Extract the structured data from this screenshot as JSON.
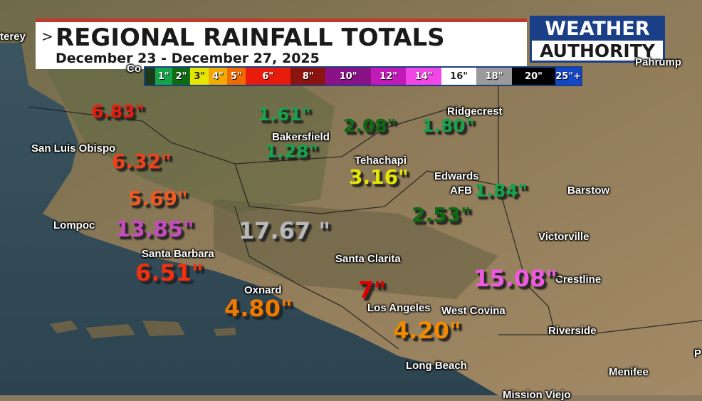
{
  "banner": {
    "title": "REGIONAL RAINFALL TOTALS",
    "subtitle": "December 23 - December 27, 2025"
  },
  "logo": {
    "line1": "WEATHER",
    "line2": "AUTHORITY"
  },
  "legend": [
    {
      "label": "",
      "color": "#1a3a1a"
    },
    {
      "label": "1\"",
      "color": "#16a34a"
    },
    {
      "label": "2\"",
      "color": "#0f6b12"
    },
    {
      "label": "3\"",
      "color": "#e6e600"
    },
    {
      "label": "4\"",
      "color": "#f2a900"
    },
    {
      "label": "5\"",
      "color": "#f06a00"
    },
    {
      "label": "6\"",
      "color": "#e81c0c"
    },
    {
      "label": "8\"",
      "color": "#8b1410"
    },
    {
      "label": "10\"",
      "color": "#8a1186"
    },
    {
      "label": "12\"",
      "color": "#c01ab8"
    },
    {
      "label": "14\"",
      "color": "#f247e6"
    },
    {
      "label": "16\"",
      "color": "#ffffff"
    },
    {
      "label": "18\"",
      "color": "#9a9a9a"
    },
    {
      "label": "20\"",
      "color": "#000000"
    },
    {
      "label": "25\"+",
      "color": "#1446c8"
    }
  ],
  "cities": [
    {
      "id": "monterey",
      "name": "terey"
    },
    {
      "id": "coalinga",
      "name": "Co"
    },
    {
      "id": "pahrump",
      "name": "Pahrump"
    },
    {
      "id": "ridgecrest",
      "name": "Ridgecrest"
    },
    {
      "id": "bakersfield",
      "name": "Bakersfield"
    },
    {
      "id": "san-luis-obispo",
      "name": "San Luis Obispo"
    },
    {
      "id": "tehachapi",
      "name": "Tehachapi"
    },
    {
      "id": "edwards",
      "name": "Edwards"
    },
    {
      "id": "afb",
      "name": "AFB"
    },
    {
      "id": "barstow",
      "name": "Barstow"
    },
    {
      "id": "lompoc",
      "name": "Lompoc"
    },
    {
      "id": "victorville",
      "name": "Victorville"
    },
    {
      "id": "santa-barbara",
      "name": "Santa Barbara"
    },
    {
      "id": "santa-clarita",
      "name": "Santa Clarita"
    },
    {
      "id": "crestline",
      "name": "Crestline"
    },
    {
      "id": "oxnard",
      "name": "Oxnard"
    },
    {
      "id": "los-angeles",
      "name": "Los Angeles"
    },
    {
      "id": "west-covina",
      "name": "West Covina"
    },
    {
      "id": "riverside",
      "name": "Riverside"
    },
    {
      "id": "long-beach",
      "name": "Long Beach"
    },
    {
      "id": "menifee",
      "name": "Menifee"
    },
    {
      "id": "mission-viejo",
      "name": "Mission Viejo"
    },
    {
      "id": "p",
      "name": "P"
    }
  ],
  "totals": [
    {
      "id": "t1",
      "value": "6.83\"",
      "color": "#e81c0c"
    },
    {
      "id": "t2",
      "value": "1.61\"",
      "color": "#16a34a"
    },
    {
      "id": "t3",
      "value": "2.08\"",
      "color": "#0f6b12"
    },
    {
      "id": "t4",
      "value": "1.80\"",
      "color": "#16a34a"
    },
    {
      "id": "t5",
      "value": "1.28\"",
      "color": "#16a34a"
    },
    {
      "id": "t6",
      "value": "6.32\"",
      "color": "#f0401a"
    },
    {
      "id": "t7",
      "value": "3.16\"",
      "color": "#e6e600"
    },
    {
      "id": "t8",
      "value": "1.84\"",
      "color": "#16a34a"
    },
    {
      "id": "t9",
      "value": "5.69\"",
      "color": "#f05a20"
    },
    {
      "id": "t10",
      "value": "2.53\"",
      "color": "#0f6b12"
    },
    {
      "id": "t11",
      "value": "13.85\"",
      "color": "#c64ac0"
    },
    {
      "id": "t12",
      "value": "17.67 \"",
      "color": "#b8b8b8"
    },
    {
      "id": "t13",
      "value": "6.51\"",
      "color": "#f03010"
    },
    {
      "id": "t14",
      "value": "7\"",
      "color": "#e00000"
    },
    {
      "id": "t15",
      "value": "15.08\"",
      "color": "#f05ae0"
    },
    {
      "id": "t16",
      "value": "4.80\"",
      "color": "#f07a00"
    },
    {
      "id": "t17",
      "value": "4.20\"",
      "color": "#f08a00"
    }
  ]
}
